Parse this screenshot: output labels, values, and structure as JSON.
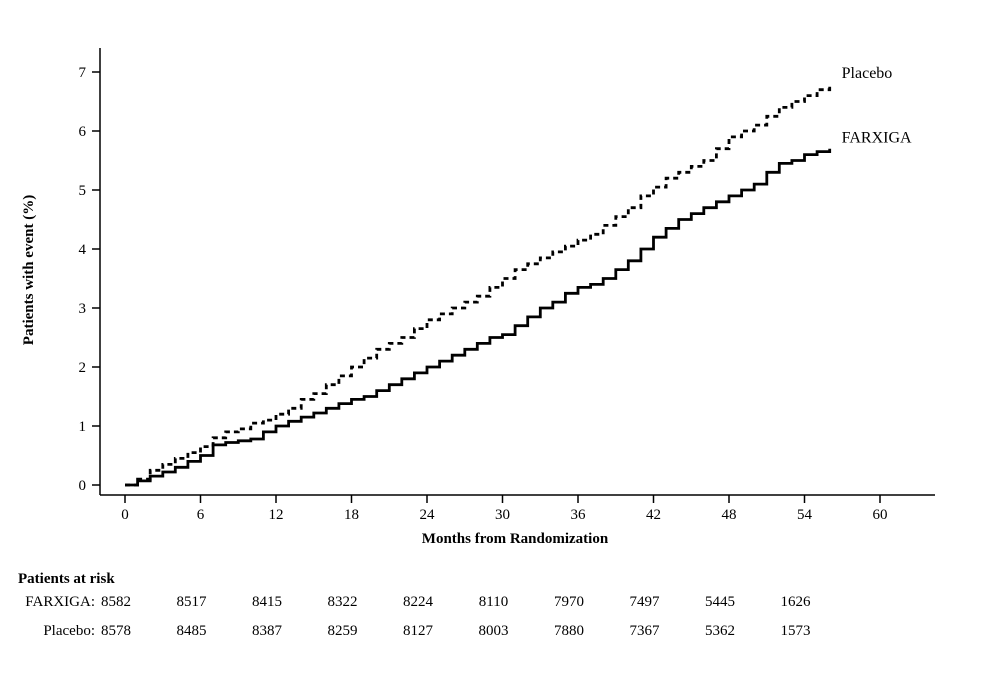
{
  "chart_data": {
    "type": "line",
    "title": "",
    "xlabel": "Months from Randomization",
    "ylabel": "Patients with event (%)",
    "xlim": [
      0,
      60
    ],
    "ylim": [
      0,
      7
    ],
    "xticks": [
      0,
      6,
      12,
      18,
      24,
      30,
      36,
      42,
      48,
      54,
      60
    ],
    "yticks": [
      0,
      1,
      2,
      3,
      4,
      5,
      6,
      7
    ],
    "grid": false,
    "legend_position": "end-of-line",
    "series": [
      {
        "name": "Placebo",
        "style": "dashed",
        "points": [
          [
            0,
            0
          ],
          [
            1,
            0.1
          ],
          [
            2,
            0.25
          ],
          [
            3,
            0.35
          ],
          [
            4,
            0.45
          ],
          [
            5,
            0.55
          ],
          [
            6,
            0.65
          ],
          [
            7,
            0.8
          ],
          [
            8,
            0.9
          ],
          [
            9,
            0.95
          ],
          [
            10,
            1.05
          ],
          [
            11,
            1.1
          ],
          [
            12,
            1.2
          ],
          [
            13,
            1.3
          ],
          [
            14,
            1.45
          ],
          [
            15,
            1.55
          ],
          [
            16,
            1.7
          ],
          [
            17,
            1.85
          ],
          [
            18,
            2.0
          ],
          [
            19,
            2.15
          ],
          [
            20,
            2.3
          ],
          [
            21,
            2.4
          ],
          [
            22,
            2.5
          ],
          [
            23,
            2.65
          ],
          [
            24,
            2.8
          ],
          [
            25,
            2.9
          ],
          [
            26,
            3.0
          ],
          [
            27,
            3.1
          ],
          [
            28,
            3.2
          ],
          [
            29,
            3.35
          ],
          [
            30,
            3.5
          ],
          [
            31,
            3.65
          ],
          [
            32,
            3.75
          ],
          [
            33,
            3.85
          ],
          [
            34,
            3.95
          ],
          [
            35,
            4.05
          ],
          [
            36,
            4.15
          ],
          [
            37,
            4.25
          ],
          [
            38,
            4.4
          ],
          [
            39,
            4.55
          ],
          [
            40,
            4.7
          ],
          [
            41,
            4.9
          ],
          [
            42,
            5.05
          ],
          [
            43,
            5.2
          ],
          [
            44,
            5.3
          ],
          [
            45,
            5.4
          ],
          [
            46,
            5.5
          ],
          [
            47,
            5.7
          ],
          [
            48,
            5.9
          ],
          [
            49,
            6.0
          ],
          [
            50,
            6.1
          ],
          [
            51,
            6.25
          ],
          [
            52,
            6.4
          ],
          [
            53,
            6.5
          ],
          [
            54,
            6.6
          ],
          [
            55,
            6.7
          ],
          [
            56,
            6.8
          ]
        ]
      },
      {
        "name": "FARXIGA",
        "style": "solid",
        "points": [
          [
            0,
            0
          ],
          [
            1,
            0.07
          ],
          [
            2,
            0.15
          ],
          [
            3,
            0.22
          ],
          [
            4,
            0.3
          ],
          [
            5,
            0.4
          ],
          [
            6,
            0.5
          ],
          [
            7,
            0.68
          ],
          [
            8,
            0.72
          ],
          [
            9,
            0.75
          ],
          [
            10,
            0.78
          ],
          [
            11,
            0.9
          ],
          [
            12,
            1.0
          ],
          [
            13,
            1.08
          ],
          [
            14,
            1.15
          ],
          [
            15,
            1.22
          ],
          [
            16,
            1.3
          ],
          [
            17,
            1.38
          ],
          [
            18,
            1.45
          ],
          [
            19,
            1.5
          ],
          [
            20,
            1.6
          ],
          [
            21,
            1.7
          ],
          [
            22,
            1.8
          ],
          [
            23,
            1.9
          ],
          [
            24,
            2.0
          ],
          [
            25,
            2.1
          ],
          [
            26,
            2.2
          ],
          [
            27,
            2.3
          ],
          [
            28,
            2.4
          ],
          [
            29,
            2.5
          ],
          [
            30,
            2.55
          ],
          [
            31,
            2.7
          ],
          [
            32,
            2.85
          ],
          [
            33,
            3.0
          ],
          [
            34,
            3.1
          ],
          [
            35,
            3.25
          ],
          [
            36,
            3.35
          ],
          [
            37,
            3.4
          ],
          [
            38,
            3.5
          ],
          [
            39,
            3.65
          ],
          [
            40,
            3.8
          ],
          [
            41,
            4.0
          ],
          [
            42,
            4.2
          ],
          [
            43,
            4.35
          ],
          [
            44,
            4.5
          ],
          [
            45,
            4.6
          ],
          [
            46,
            4.7
          ],
          [
            47,
            4.8
          ],
          [
            48,
            4.9
          ],
          [
            49,
            5.0
          ],
          [
            50,
            5.1
          ],
          [
            51,
            5.3
          ],
          [
            52,
            5.45
          ],
          [
            53,
            5.5
          ],
          [
            54,
            5.6
          ],
          [
            55,
            5.65
          ],
          [
            56,
            5.7
          ]
        ]
      }
    ]
  },
  "at_risk": {
    "heading": "Patients at risk",
    "months": [
      0,
      6,
      12,
      18,
      24,
      30,
      36,
      42,
      48,
      54
    ],
    "rows": [
      {
        "label": "FARXIGA:",
        "values": [
          "8582",
          "8517",
          "8415",
          "8322",
          "8224",
          "8110",
          "7970",
          "7497",
          "5445",
          "1626"
        ]
      },
      {
        "label": "Placebo:",
        "values": [
          "8578",
          "8485",
          "8387",
          "8259",
          "8127",
          "8003",
          "7880",
          "7367",
          "5362",
          "1573"
        ]
      }
    ]
  },
  "colors": {
    "line": "#000000",
    "background": "#ffffff"
  }
}
